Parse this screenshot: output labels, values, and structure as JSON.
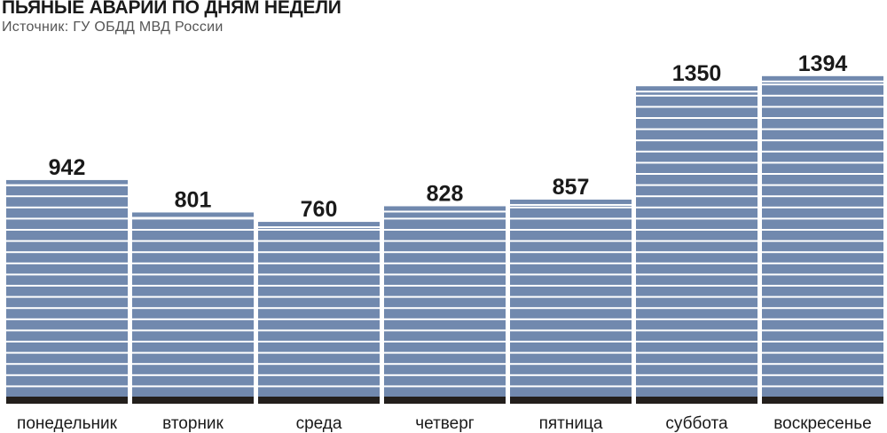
{
  "title": "ПЬЯНЫЕ АВАРИИ ПО ДНЯМ НЕДЕЛИ",
  "subtitle": "Источник: ГУ ОБДД МВД России",
  "colors": {
    "bar": "#7189ae",
    "bar_stripe": "#ffffff",
    "baseline": "#231f1c",
    "text": "#1a1a1a",
    "subtitle": "#555555"
  },
  "chart_data": {
    "type": "bar",
    "title": "ПЬЯНЫЕ АВАРИИ ПО ДНЯМ НЕДЕЛИ",
    "subtitle": "Источник: ГУ ОБДД МВД России",
    "categories": [
      "понедельник",
      "вторник",
      "среда",
      "четверг",
      "пятница",
      "суббота",
      "воскресенье"
    ],
    "values": [
      942,
      801,
      760,
      828,
      857,
      1350,
      1394
    ],
    "data_labels": [
      "942",
      "801",
      "760",
      "828",
      "857",
      "1350",
      "1394"
    ],
    "xlabel": "",
    "ylabel": "",
    "grid": false,
    "legend": "none"
  }
}
